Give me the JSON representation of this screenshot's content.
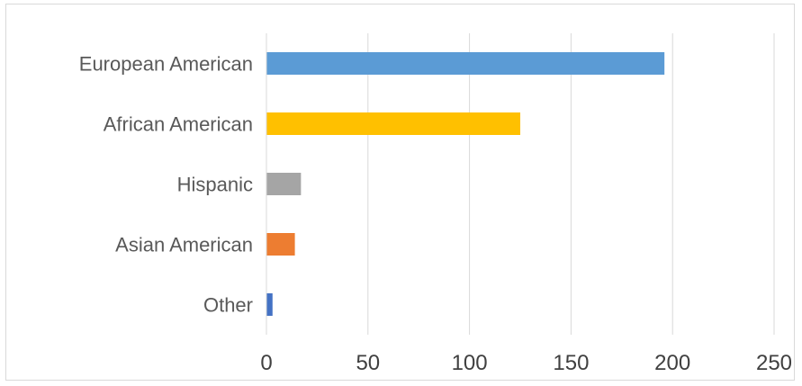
{
  "chart_data": {
    "type": "bar",
    "orientation": "horizontal",
    "categories": [
      "European American",
      "African American",
      "Hispanic",
      "Asian American",
      "Other"
    ],
    "values": [
      196,
      125,
      17,
      14,
      3
    ],
    "colors": [
      "#5b9bd5",
      "#ffc000",
      "#a5a5a5",
      "#ed7d31",
      "#4472c4"
    ],
    "xlim": [
      0,
      250
    ],
    "x_ticks": [
      "0",
      "50",
      "100",
      "150",
      "200",
      "250"
    ],
    "grid": true,
    "legend": "none",
    "title": "",
    "xlabel": "",
    "ylabel": ""
  }
}
